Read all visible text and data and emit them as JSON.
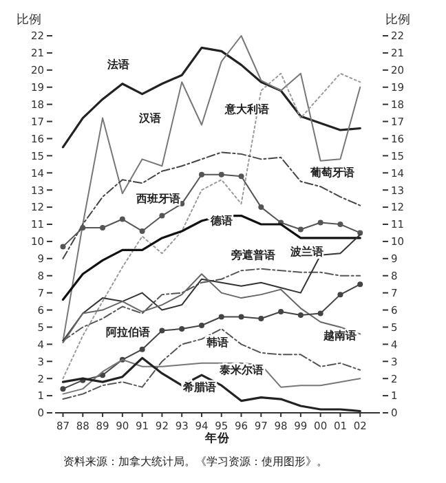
{
  "chart_data": {
    "type": "line",
    "ylabel": "比例",
    "y2label": "比例",
    "xlabel": "年份",
    "annotations": [
      "资料来源：加拿大统计局。《学习资源：使用图形》。"
    ],
    "x": [
      1987,
      1988,
      1989,
      1990,
      1991,
      1992,
      1993,
      1994,
      1995,
      1996,
      1997,
      1998,
      1999,
      2000,
      2001,
      2002
    ],
    "xlim": [
      1986.6,
      2003
    ],
    "xticks": [
      {
        "value": 1987,
        "label": "87"
      },
      {
        "value": 1988,
        "label": "88"
      },
      {
        "value": 1989,
        "label": "89"
      },
      {
        "value": 1990,
        "label": "90"
      },
      {
        "value": 1991,
        "label": "91"
      },
      {
        "value": 1992,
        "label": "92"
      },
      {
        "value": 1993,
        "label": "93"
      },
      {
        "value": 1994,
        "label": "94"
      },
      {
        "value": 1995,
        "label": "95"
      },
      {
        "value": 1996,
        "label": "96"
      },
      {
        "value": 1997,
        "label": "97"
      },
      {
        "value": 1998,
        "label": "98"
      },
      {
        "value": 1999,
        "label": "99"
      },
      {
        "value": 2000,
        "label": "00"
      },
      {
        "value": 2001,
        "label": "01"
      },
      {
        "value": 2002,
        "label": "02"
      }
    ],
    "ylim": [
      0,
      22
    ],
    "yticks": [
      0,
      1,
      2,
      3,
      4,
      5,
      6,
      7,
      8,
      9,
      10,
      11,
      12,
      13,
      14,
      15,
      16,
      17,
      18,
      19,
      20,
      21,
      22
    ],
    "y2lim": [
      0,
      22
    ],
    "y2ticks": [
      0,
      1,
      2,
      3,
      4,
      5,
      6,
      7,
      8,
      9,
      10,
      11,
      12,
      13,
      14,
      15,
      16,
      17,
      18,
      19,
      20,
      21,
      22
    ],
    "grid": false,
    "series": [
      {
        "name": "法语",
        "color": "#222222",
        "line_style": "solid",
        "values": [
          15.5,
          17.2,
          18.3,
          19.2,
          18.6,
          19.2,
          19.7,
          21.3,
          21.1,
          20.3,
          19.3,
          18.8,
          17.3,
          16.9,
          16.5,
          16.6
        ]
      },
      {
        "name": "汉语",
        "color": "#777777",
        "line_style": "solid",
        "values": [
          4.2,
          11.0,
          17.2,
          12.8,
          14.8,
          14.4,
          19.3,
          16.8,
          20.5,
          22.0,
          19.4,
          18.8,
          19.8,
          14.7,
          14.8,
          19.0
        ]
      },
      {
        "name": "意大利语",
        "color": "#999999",
        "line_style": "dotted",
        "values": [
          2.0,
          4.5,
          6.5,
          8.5,
          10.3,
          9.3,
          10.6,
          13.0,
          13.6,
          12.2,
          18.8,
          19.8,
          17.2,
          18.5,
          19.8,
          19.3
        ]
      },
      {
        "name": "葡萄牙语",
        "color": "#444444",
        "line_style": "dashed",
        "values": [
          9.0,
          11.0,
          12.6,
          13.6,
          13.4,
          14.1,
          14.4,
          14.8,
          15.2,
          15.1,
          14.8,
          14.9,
          13.5,
          13.2,
          12.6,
          12.1
        ]
      },
      {
        "name": "西班牙语",
        "color": "#555555",
        "line_style": "solid",
        "marker": "circle",
        "values": [
          9.7,
          10.8,
          10.8,
          11.3,
          10.6,
          11.5,
          12.2,
          13.9,
          13.9,
          13.8,
          12.0,
          11.1,
          10.7,
          11.1,
          11.0,
          10.5
        ]
      },
      {
        "name": "德语",
        "color": "#111111",
        "line_style": "solid",
        "values": [
          6.6,
          8.1,
          8.9,
          9.5,
          9.5,
          10.2,
          10.6,
          11.2,
          11.5,
          11.5,
          11.0,
          11.0,
          10.2,
          10.2,
          10.2,
          10.2
        ]
      },
      {
        "name": "旁遮普语",
        "color": "#555555",
        "line_style": "dashed",
        "values": [
          4.2,
          5.0,
          5.5,
          6.2,
          5.8,
          6.9,
          7.0,
          7.6,
          7.8,
          8.3,
          8.4,
          8.3,
          8.2,
          8.2,
          8.0,
          8.0
        ]
      },
      {
        "name": "波兰语",
        "color": "#333333",
        "line_style": "solid",
        "values": [
          4.2,
          5.8,
          6.7,
          6.5,
          7.0,
          6.0,
          6.3,
          7.8,
          7.6,
          7.4,
          7.6,
          7.3,
          7.0,
          9.2,
          9.3,
          10.4
        ]
      },
      {
        "name": "越南语",
        "color": "#666666",
        "line_style": "solid",
        "values": [
          4.1,
          5.8,
          6.0,
          6.5,
          5.9,
          6.3,
          6.9,
          8.1,
          7.0,
          6.7,
          6.9,
          7.2,
          6.1,
          5.3,
          5.0,
          4.6
        ]
      },
      {
        "name": "阿拉伯语",
        "color": "#444444",
        "line_style": "solid",
        "marker": "circle",
        "values": [
          1.4,
          1.9,
          2.2,
          3.1,
          3.7,
          4.8,
          4.9,
          5.1,
          5.6,
          5.6,
          5.5,
          5.9,
          5.7,
          5.8,
          6.9,
          7.5
        ]
      },
      {
        "name": "韩语",
        "color": "#555555",
        "line_style": "dashed",
        "values": [
          0.8,
          1.1,
          1.6,
          1.8,
          1.5,
          3.0,
          4.0,
          4.3,
          4.9,
          4.0,
          3.5,
          3.4,
          3.4,
          2.7,
          2.9,
          2.5
        ]
      },
      {
        "name": "泰米尔语",
        "color": "#777777",
        "line_style": "solid",
        "values": [
          1.1,
          1.4,
          2.4,
          3.1,
          2.7,
          2.7,
          2.8,
          2.9,
          2.9,
          2.9,
          2.8,
          1.5,
          1.6,
          1.6,
          1.8,
          2.0
        ]
      },
      {
        "name": "希腊语",
        "color": "#222222",
        "line_style": "solid",
        "values": [
          1.8,
          2.0,
          1.8,
          2.1,
          3.2,
          2.3,
          1.6,
          2.2,
          1.6,
          0.7,
          0.9,
          0.8,
          0.4,
          0.2,
          0.2,
          0.1
        ]
      }
    ]
  }
}
